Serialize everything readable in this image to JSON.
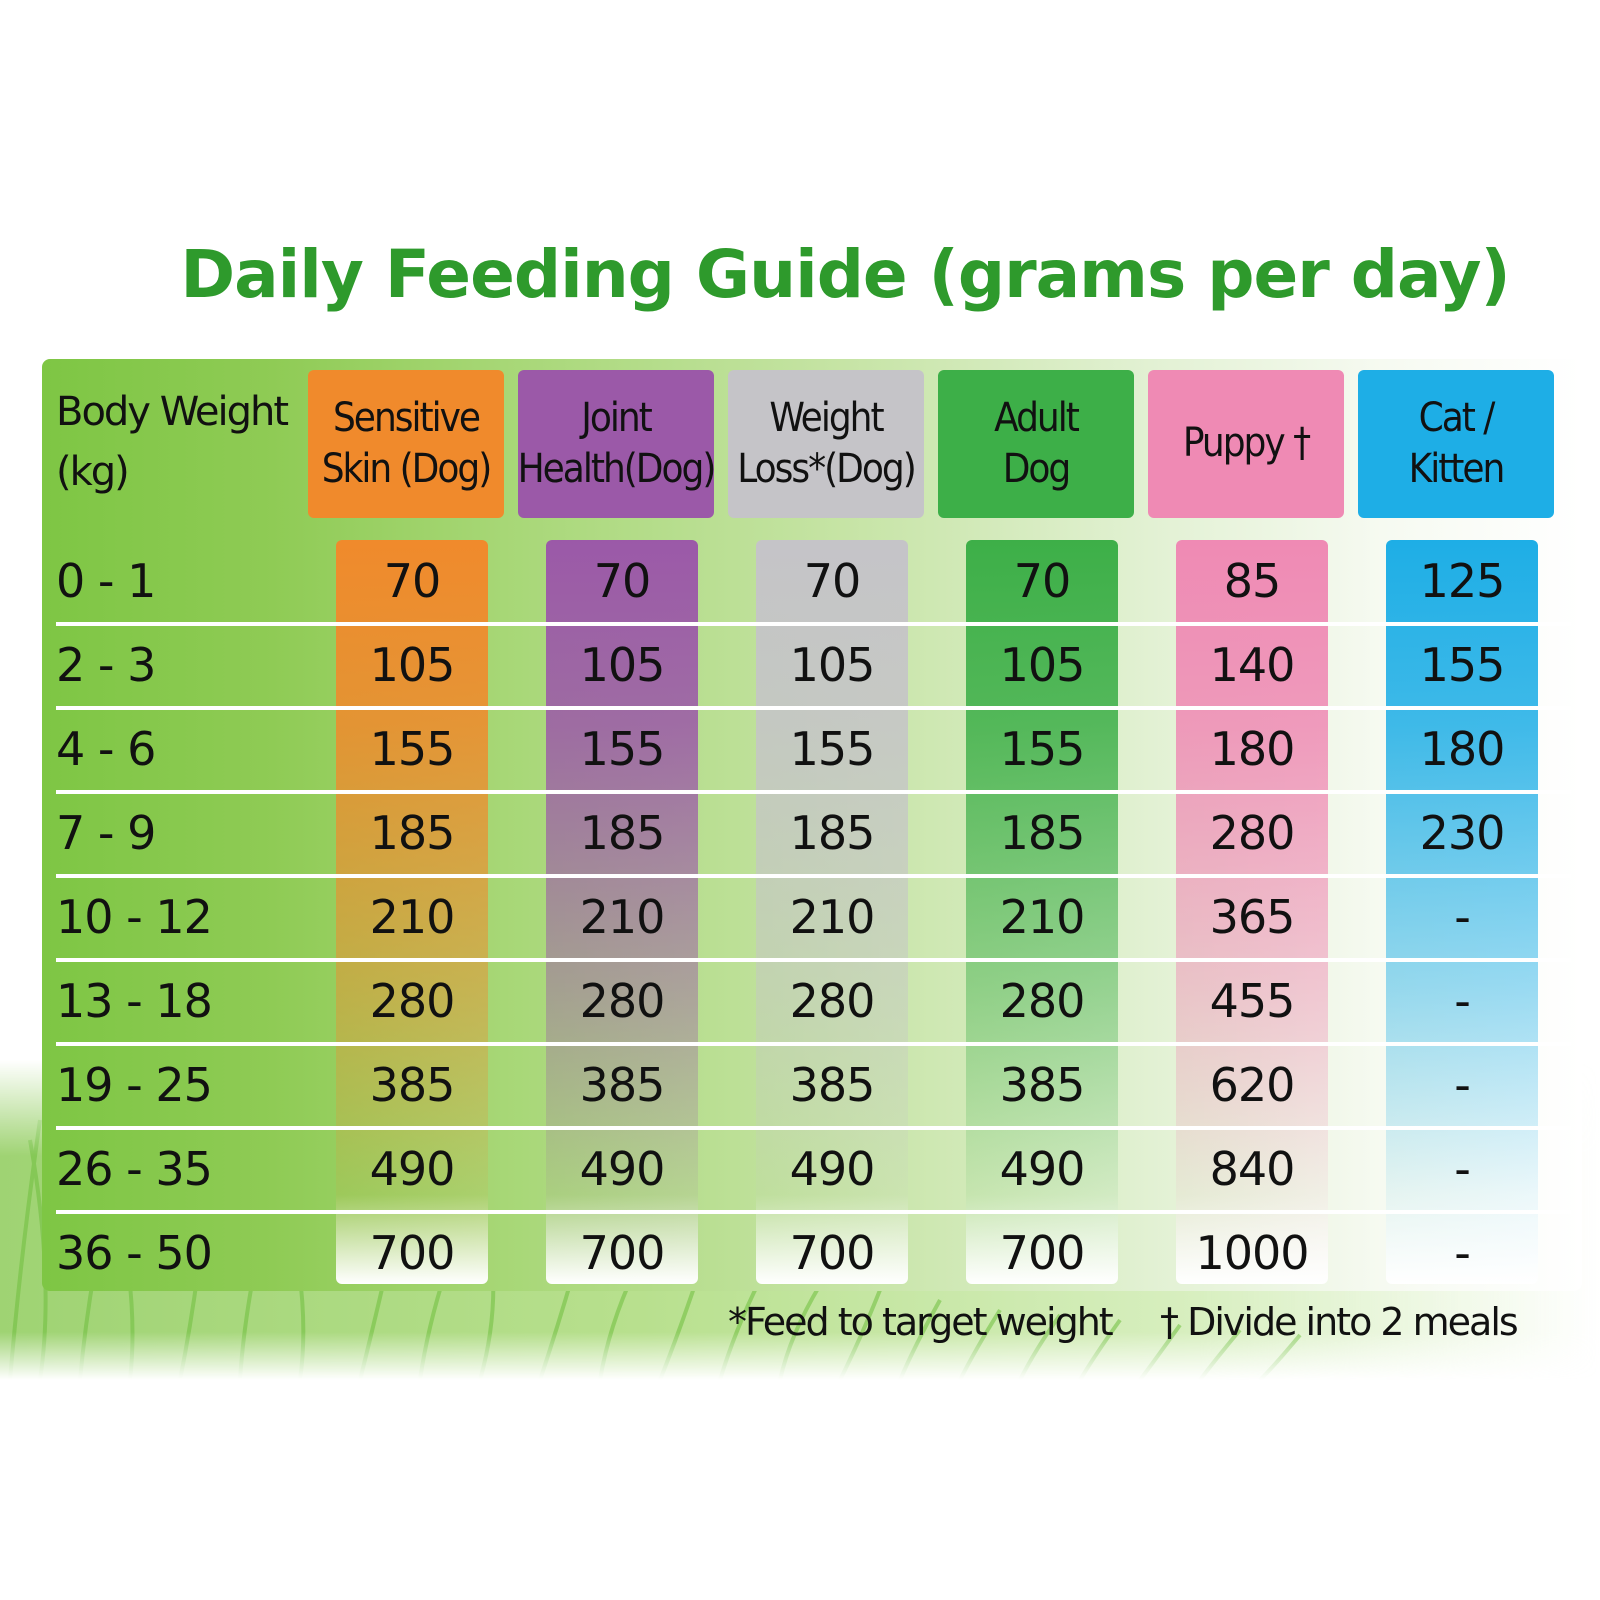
{
  "title": "Daily Feeding Guide (grams per day)",
  "weight_header": "Body Weight\n(kg)",
  "columns": [
    {
      "label": "Sensitive\nSkin (Dog)",
      "color": "#f08a2c",
      "name": "sensitive-skin"
    },
    {
      "label": "Joint\nHealth(Dog)",
      "color": "#9b59a8",
      "name": "joint-health"
    },
    {
      "label": "Weight\nLoss*(Dog)",
      "color": "#c5c4c8",
      "name": "weight-loss"
    },
    {
      "label": "Adult\nDog",
      "color": "#3daf48",
      "name": "adult-dog"
    },
    {
      "label": "Puppy †",
      "color": "#ef8ab4",
      "name": "puppy"
    },
    {
      "label": "Cat /\nKitten",
      "color": "#1eaee6",
      "name": "cat-kitten"
    }
  ],
  "rows": [
    {
      "weight": "0 - 1",
      "values": [
        "70",
        "70",
        "70",
        "70",
        "85",
        "125"
      ]
    },
    {
      "weight": "2 - 3",
      "values": [
        "105",
        "105",
        "105",
        "105",
        "140",
        "155"
      ]
    },
    {
      "weight": "4 - 6",
      "values": [
        "155",
        "155",
        "155",
        "155",
        "180",
        "180"
      ]
    },
    {
      "weight": "7 - 9",
      "values": [
        "185",
        "185",
        "185",
        "185",
        "280",
        "230"
      ]
    },
    {
      "weight": "10 - 12",
      "values": [
        "210",
        "210",
        "210",
        "210",
        "365",
        "-"
      ]
    },
    {
      "weight": "13 - 18",
      "values": [
        "280",
        "280",
        "280",
        "280",
        "455",
        "-"
      ]
    },
    {
      "weight": "19 - 25",
      "values": [
        "385",
        "385",
        "385",
        "385",
        "620",
        "-"
      ]
    },
    {
      "weight": "26 - 35",
      "values": [
        "490",
        "490",
        "490",
        "490",
        "840",
        "-"
      ]
    },
    {
      "weight": "36 - 50",
      "values": [
        "700",
        "700",
        "700",
        "700",
        "1000",
        "-"
      ]
    }
  ],
  "notes": {
    "target_weight": "*Feed to target weight",
    "divide_meals": "† Divide into 2 meals"
  }
}
